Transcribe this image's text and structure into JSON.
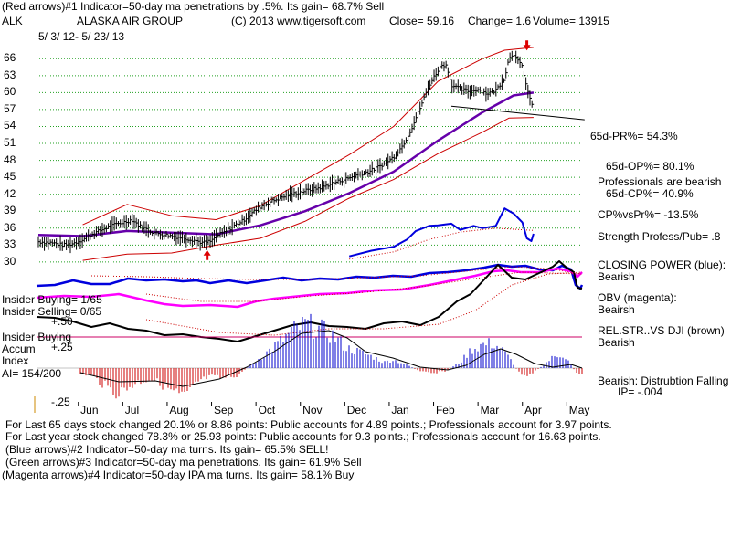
{
  "header": {
    "line1": "(Red arrows)#1 Indicator=50-day ma penetrations by .5%. Its gain= 68.7% Sell",
    "ticker": "ALK",
    "company": "ALASKA AIR GROUP",
    "copyright": "(C) 2013 www.tigersoft.com",
    "close": "Close= 59.16",
    "change": "Change= 1.6",
    "volume": "Volume= 13915",
    "date_range": "5/ 3/ 12- 5/ 23/ 13"
  },
  "right_panel": {
    "pr65": "65d-PR%= 54.3%",
    "op65": "65d-OP%= 80.1%",
    "prof_bearish": "Professionals are bearish",
    "cp65": "65d-CP%= 40.9%",
    "cpvspr": "CP%vsPr%= -13.5%",
    "strength": "Strength Profess/Pub= .8",
    "closing_power": "CLOSING POWER (blue):",
    "closing_power_val": "Bearish",
    "obv": "OBV (magenta):",
    "obv_val": "Beairsh",
    "relstr": "REL.STR..VS DJI (brown)",
    "relstr_val": "Bearish",
    "accum": "Bearish: Distrubtion Falling",
    "ip": "IP= -.004"
  },
  "left_panel": {
    "insider_buying": "Insider Buying= 1/65",
    "insider_selling": "Insider Selling= 0/65",
    "insider_buying2": "Insider Buying",
    "accum": "Accum",
    "index": "Index",
    "ai": "AI= 154/200"
  },
  "footer": {
    "line1": "For Last 65 days stock changed  20.1% or  8.86 points:  Public accounts for  4.89 points.;  Professionals account for  3.97 points.",
    "line2": "For Last year stock changed  78.3% or  25.93 points:  Public accounts for  9.3 points.;  Professionals account for  16.63 points.",
    "line3": "(Blue arrows)#2 Indicator=50-day ma turns. Its gain= 65.5% SELL!",
    "line4": "(Green arrows)#3 Indicator=50-day ma penetrations. Its gain= 61.9% Sell",
    "line5": "(Magenta arrows)#4 Indicator=50-day IPA ma turns. Its gain= 58.1% Buy"
  },
  "chart_data": {
    "type": "line",
    "title": "ALASKA AIR GROUP",
    "y_ticks": [
      66,
      63,
      60,
      57,
      54,
      51,
      48,
      45,
      42,
      39,
      36,
      33,
      30
    ],
    "ylim": [
      29.5,
      67.5
    ],
    "acc_ticks": [
      "+.50",
      "+.25",
      "-.25"
    ],
    "x_labels": [
      "Jun",
      "Jul",
      "Aug",
      "Sep",
      "Oct",
      "Nov",
      "Dec",
      "Jan",
      "Feb",
      "Mar",
      "Apr",
      "May"
    ],
    "price": [
      [
        0,
        33.6
      ],
      [
        0.3,
        33.4
      ],
      [
        0.55,
        33.0
      ],
      [
        0.75,
        33.2
      ],
      [
        1.0,
        34.0
      ],
      [
        1.2,
        34.9
      ],
      [
        1.4,
        35.6
      ],
      [
        1.6,
        36.3
      ],
      [
        1.8,
        36.8
      ],
      [
        2.0,
        37.2
      ],
      [
        2.1,
        37.5
      ],
      [
        2.3,
        36.3
      ],
      [
        2.6,
        35.2
      ],
      [
        2.8,
        34.9
      ],
      [
        3.0,
        34.6
      ],
      [
        3.3,
        34.2
      ],
      [
        3.5,
        33.9
      ],
      [
        3.7,
        33.4
      ],
      [
        3.9,
        33.7
      ],
      [
        4.0,
        34.6
      ],
      [
        4.2,
        35.3
      ],
      [
        4.4,
        36.4
      ],
      [
        4.6,
        37.3
      ],
      [
        4.8,
        38.6
      ],
      [
        5.0,
        39.8
      ],
      [
        5.2,
        40.6
      ],
      [
        5.4,
        41.2
      ],
      [
        5.6,
        41.8
      ],
      [
        5.8,
        42.2
      ],
      [
        6.0,
        42.6
      ],
      [
        6.2,
        42.9
      ],
      [
        6.4,
        43.3
      ],
      [
        6.6,
        43.9
      ],
      [
        6.8,
        44.4
      ],
      [
        7.0,
        44.9
      ],
      [
        7.2,
        45.5
      ],
      [
        7.4,
        45.9
      ],
      [
        7.6,
        46.6
      ],
      [
        7.8,
        47.5
      ],
      [
        8.0,
        48.6
      ],
      [
        8.2,
        50.6
      ],
      [
        8.4,
        53.6
      ],
      [
        8.6,
        57.4
      ],
      [
        8.8,
        61.3
      ],
      [
        9.0,
        64.0
      ],
      [
        9.1,
        65.0
      ],
      [
        9.2,
        64.7
      ],
      [
        9.3,
        61.4
      ],
      [
        9.5,
        60.6
      ],
      [
        9.7,
        60.2
      ],
      [
        9.9,
        60.6
      ],
      [
        10.1,
        59.8
      ],
      [
        10.3,
        60.4
      ],
      [
        10.5,
        62.6
      ],
      [
        10.6,
        66.2
      ],
      [
        10.7,
        67.0
      ],
      [
        10.8,
        65.5
      ],
      [
        10.9,
        64.6
      ],
      [
        11.0,
        60.8
      ],
      [
        11.05,
        59.5
      ],
      [
        11.1,
        57.6
      ],
      [
        11.15,
        59.2
      ]
    ],
    "ma50": [
      [
        0,
        34.8
      ],
      [
        1.0,
        34.6
      ],
      [
        2.0,
        35.5
      ],
      [
        3.0,
        35.2
      ],
      [
        4.0,
        34.9
      ],
      [
        5.0,
        36.5
      ],
      [
        6.0,
        39.0
      ],
      [
        7.0,
        42.2
      ],
      [
        8.0,
        46.0
      ],
      [
        9.0,
        51.5
      ],
      [
        10.0,
        56.5
      ],
      [
        10.7,
        59.5
      ],
      [
        11.15,
        60.0
      ]
    ],
    "upper_band": [
      [
        1.0,
        36.6
      ],
      [
        2.0,
        40.2
      ],
      [
        3.0,
        38.2
      ],
      [
        4.0,
        37.5
      ],
      [
        5.0,
        40.0
      ],
      [
        6.0,
        44.5
      ],
      [
        7.0,
        49.0
      ],
      [
        8.0,
        54.0
      ],
      [
        9.0,
        62.0
      ],
      [
        10.0,
        66.0
      ],
      [
        10.5,
        67.5
      ],
      [
        11.15,
        68.0
      ]
    ],
    "lower_band": [
      [
        1.0,
        30.3
      ],
      [
        2.0,
        31.4
      ],
      [
        3.0,
        31.6
      ],
      [
        4.0,
        33.0
      ],
      [
        5.0,
        34.2
      ],
      [
        6.0,
        37.2
      ],
      [
        7.0,
        41.3
      ],
      [
        8.0,
        44.6
      ],
      [
        9.0,
        49.2
      ],
      [
        10.0,
        53.0
      ],
      [
        10.6,
        55.5
      ],
      [
        11.15,
        55.6
      ]
    ],
    "support_line": [
      [
        9.3,
        57.6
      ],
      [
        12.3,
        55.2
      ]
    ],
    "closing_power": [
      [
        7.0,
        31.0
      ],
      [
        7.5,
        32.0
      ],
      [
        8.0,
        32.7
      ],
      [
        8.3,
        34.0
      ],
      [
        8.5,
        35.5
      ],
      [
        8.8,
        36.4
      ],
      [
        9.0,
        36.5
      ],
      [
        9.3,
        36.8
      ],
      [
        9.5,
        35.7
      ],
      [
        9.8,
        36.4
      ],
      [
        10.0,
        36.0
      ],
      [
        10.3,
        36.4
      ],
      [
        10.5,
        39.5
      ],
      [
        10.7,
        38.6
      ],
      [
        10.9,
        37.0
      ],
      [
        11.0,
        34.2
      ],
      [
        11.1,
        33.7
      ],
      [
        11.15,
        35.0
      ]
    ],
    "red_arrows": [
      [
        3.8,
        31.0,
        "up"
      ],
      [
        11.0,
        68.6,
        "down"
      ]
    ]
  }
}
